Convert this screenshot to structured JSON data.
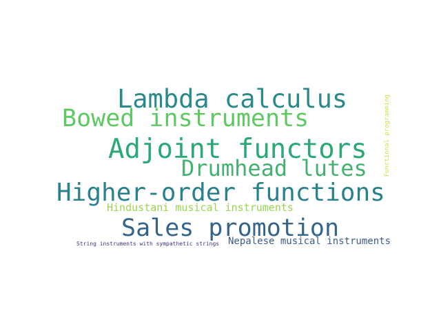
{
  "words": [
    {
      "text": "Lambda calculus",
      "color": "#2a8a8a"
    },
    {
      "text": "Bowed instruments",
      "color": "#5ec962"
    },
    {
      "text": "Adjoint functors",
      "color": "#2aa876"
    },
    {
      "text": "Drumhead lutes",
      "color": "#44b26e"
    },
    {
      "text": "Higher-order functions",
      "color": "#29818c"
    },
    {
      "text": "Hindustani musical instruments",
      "color": "#9ad54e"
    },
    {
      "text": "Sales promotion",
      "color": "#34648c"
    },
    {
      "text": "Nepalese musical instruments",
      "color": "#3d5c8c"
    },
    {
      "text": "String instruments with sympathetic strings",
      "color": "#472f7d"
    },
    {
      "text": "Functional programming",
      "color": "#d9e04a"
    }
  ]
}
